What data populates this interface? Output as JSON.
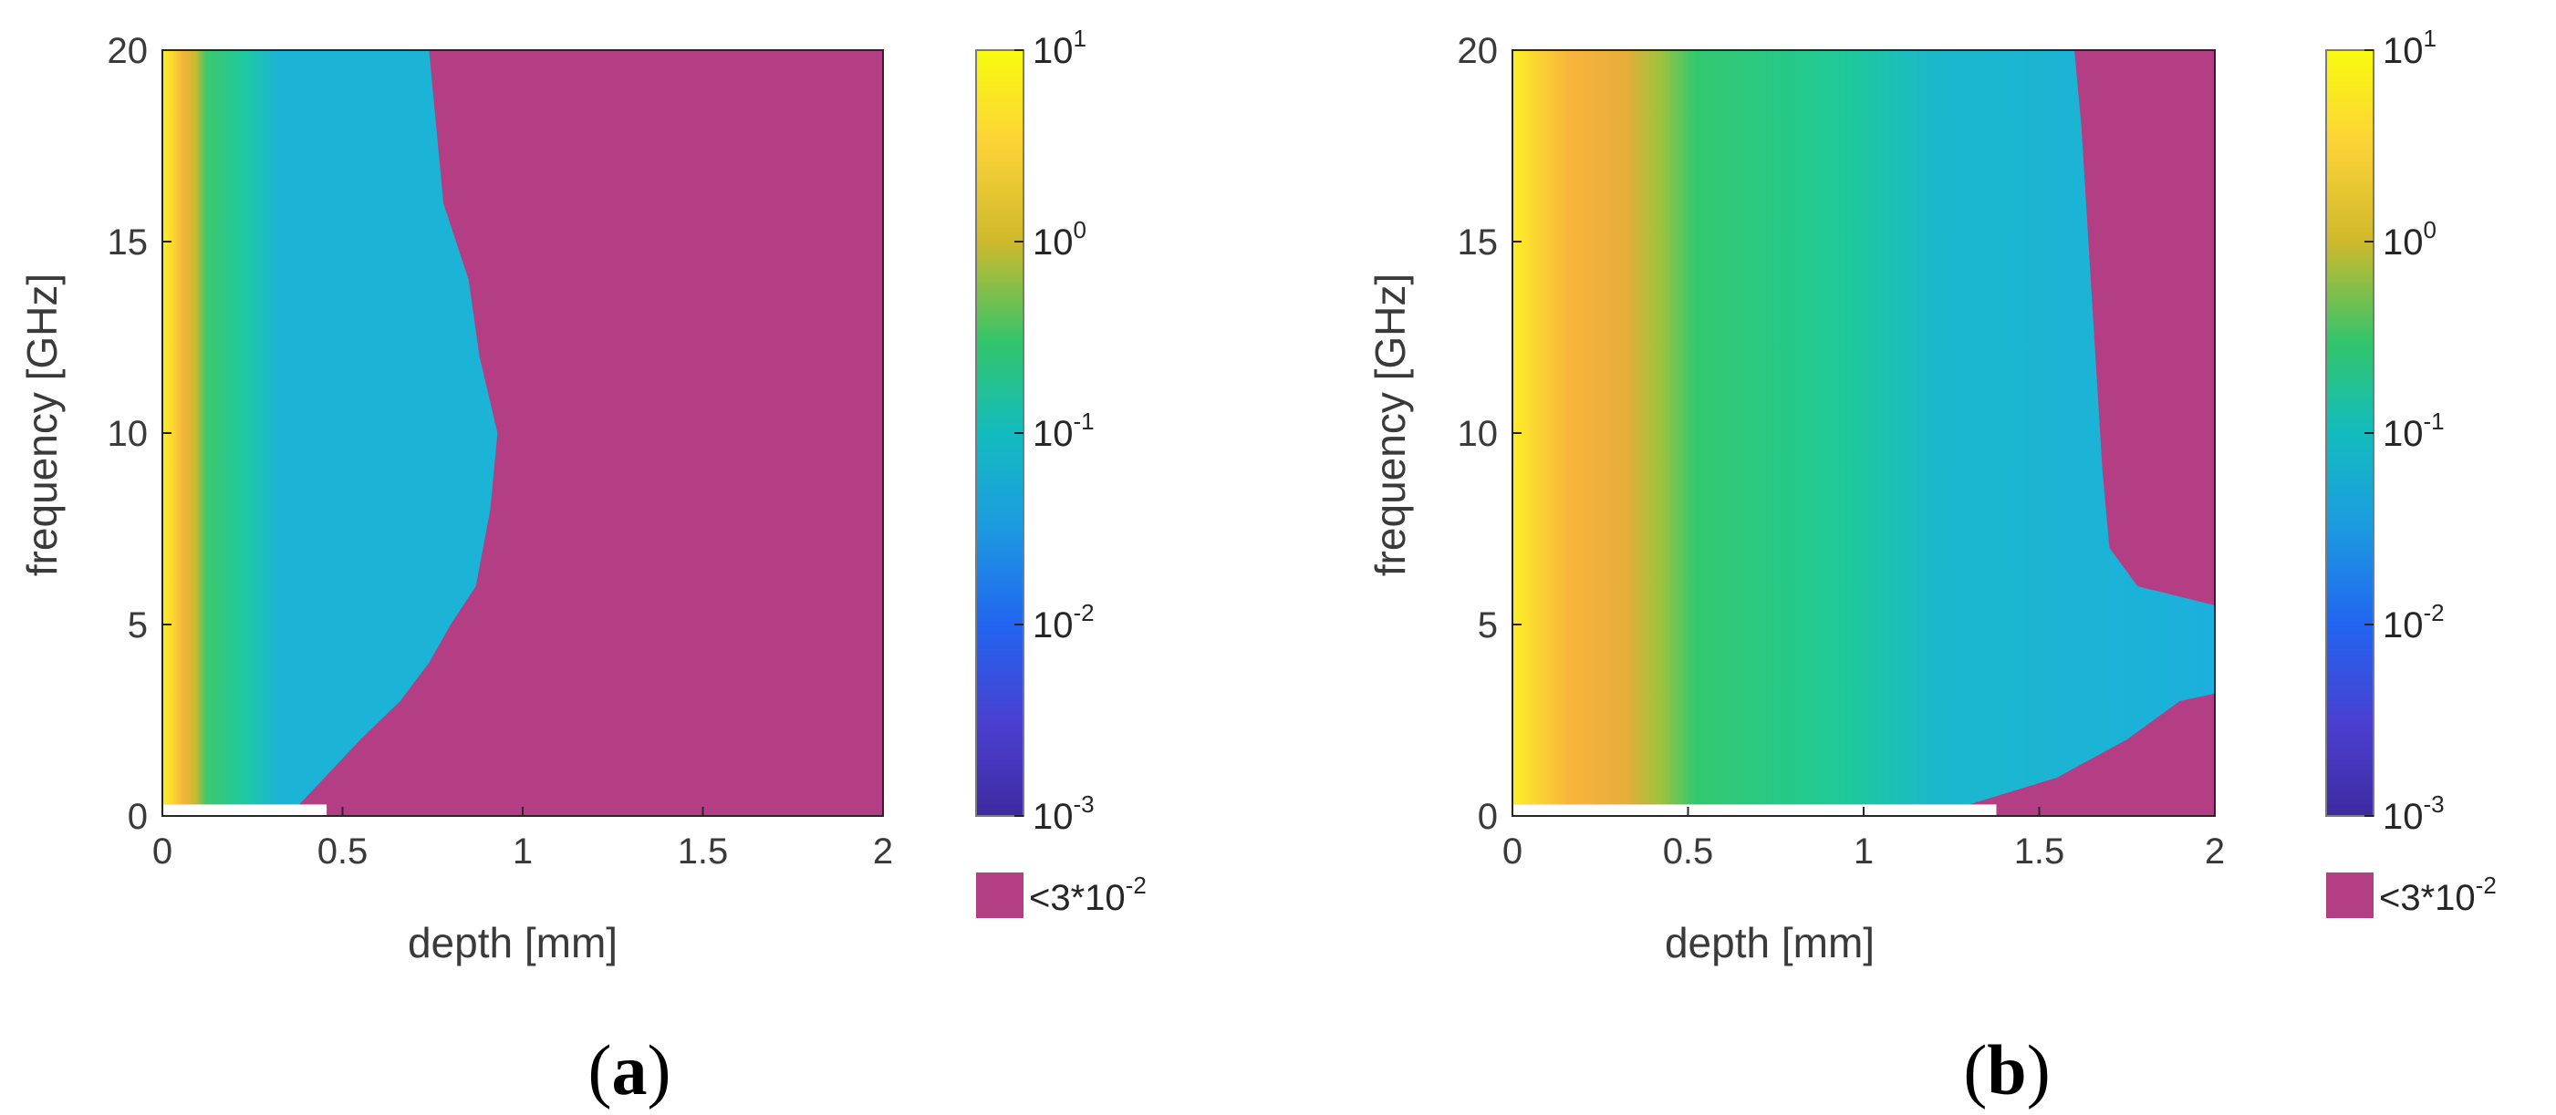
{
  "chart_data": [
    {
      "type": "heatmap",
      "panel_label": {
        "open": "(",
        "letter": "a",
        "close": ")"
      },
      "xlabel": "depth [mm]",
      "ylabel": "frequency [GHz]",
      "xlim": [
        0,
        2
      ],
      "ylim": [
        0,
        20
      ],
      "x_ticks": [
        0,
        0.5,
        1,
        1.5,
        2
      ],
      "y_ticks": [
        0,
        5,
        10,
        15,
        20
      ],
      "x_tick_labels": [
        "0",
        "0.5",
        "1",
        "1.5",
        "2"
      ],
      "y_tick_labels": [
        "0",
        "5",
        "10",
        "15",
        "20"
      ],
      "colorbar": {
        "scale": "log",
        "range": [
          0.001,
          10
        ],
        "tick_bases": [
          "10",
          "10",
          "10",
          "10",
          "10"
        ],
        "tick_exponents": [
          "1",
          "0",
          "-1",
          "-2",
          "-3"
        ],
        "below_threshold_color": "#b43e84",
        "below_threshold_base": "<3*10",
        "below_threshold_exponent": "-2"
      },
      "regions": {
        "yellow_edge_depth": [
          [
            0.3,
            0.02
          ],
          [
            2,
            0.05
          ],
          [
            10,
            0.06
          ],
          [
            20,
            0.05
          ]
        ],
        "orange_to_green_depth": [
          [
            0.3,
            0.12
          ],
          [
            2,
            0.2
          ],
          [
            10,
            0.22
          ],
          [
            20,
            0.2
          ]
        ],
        "green_to_cyan_depth": [
          [
            0.3,
            0.22
          ],
          [
            3,
            0.26
          ],
          [
            10,
            0.27
          ],
          [
            20,
            0.28
          ]
        ],
        "cyan_to_below_threshold_depth": [
          [
            0.3,
            0.38
          ],
          [
            1,
            0.45
          ],
          [
            2,
            0.55
          ],
          [
            3,
            0.66
          ],
          [
            4,
            0.74
          ],
          [
            5,
            0.8
          ],
          [
            6,
            0.87
          ],
          [
            8,
            0.91
          ],
          [
            10,
            0.93
          ],
          [
            12,
            0.88
          ],
          [
            14,
            0.85
          ],
          [
            16,
            0.78
          ],
          [
            18,
            0.76
          ],
          [
            20,
            0.74
          ]
        ]
      }
    },
    {
      "type": "heatmap",
      "panel_label": {
        "open": "(",
        "letter": "b",
        "close": ")"
      },
      "xlabel": "depth [mm]",
      "ylabel": "frequency [GHz]",
      "xlim": [
        0,
        2
      ],
      "ylim": [
        0,
        20
      ],
      "x_ticks": [
        0,
        0.5,
        1,
        1.5,
        2
      ],
      "y_ticks": [
        0,
        5,
        10,
        15,
        20
      ],
      "x_tick_labels": [
        "0",
        "0.5",
        "1",
        "1.5",
        "2"
      ],
      "y_tick_labels": [
        "0",
        "5",
        "10",
        "15",
        "20"
      ],
      "colorbar": {
        "scale": "log",
        "range": [
          0.001,
          10
        ],
        "tick_bases": [
          "10",
          "10",
          "10",
          "10",
          "10"
        ],
        "tick_exponents": [
          "1",
          "0",
          "-1",
          "-2",
          "-3"
        ],
        "below_threshold_color": "#b43e84",
        "below_threshold_base": "<3*10",
        "below_threshold_exponent": "-2"
      },
      "regions": {
        "yellow_edge_depth": [
          [
            0.3,
            0.02
          ],
          [
            2,
            0.06
          ],
          [
            10,
            0.07
          ],
          [
            20,
            0.06
          ]
        ],
        "orange_to_green_depth": [
          [
            0.3,
            0.3
          ],
          [
            2,
            0.4
          ],
          [
            5,
            0.38
          ],
          [
            10,
            0.4
          ],
          [
            20,
            0.4
          ]
        ],
        "green_to_cyan_depth": [
          [
            0.3,
            1.0
          ],
          [
            5,
            1.05
          ],
          [
            10,
            1.1
          ],
          [
            20,
            1.2
          ]
        ],
        "cyan_to_below_threshold_depth": [
          [
            0.3,
            1.3
          ],
          [
            1,
            1.55
          ],
          [
            2,
            1.75
          ],
          [
            3,
            1.9
          ],
          [
            3.2,
            2.0
          ],
          [
            5.5,
            2.0
          ],
          [
            6,
            1.78
          ],
          [
            7,
            1.7
          ],
          [
            9,
            1.68
          ],
          [
            12,
            1.66
          ],
          [
            15,
            1.64
          ],
          [
            18,
            1.62
          ],
          [
            20,
            1.6
          ]
        ]
      }
    }
  ]
}
